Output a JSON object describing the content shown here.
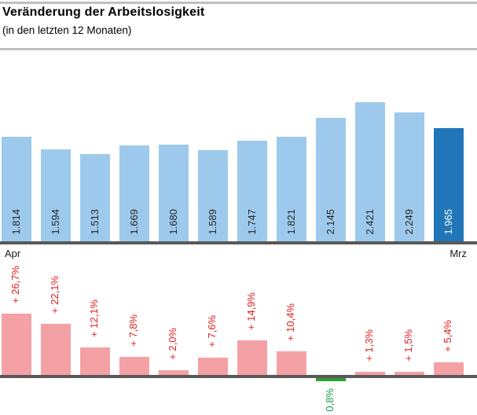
{
  "header": {
    "title": "Veränderung der Arbeitslosigkeit",
    "subtitle": "(in den letzten 12 Monaten)"
  },
  "axis": {
    "left_label": "Apr",
    "right_label": "Mrz"
  },
  "colors": {
    "bar_light_blue": "#9DCAEC",
    "bar_dark_blue": "#2076B8",
    "bar_pink": "#F4A1A6",
    "bar_green": "#2E9E30",
    "label_dark": "#262626",
    "label_white": "#FFFFFF",
    "label_red": "#E02020",
    "label_green": "#149E49",
    "axis_gray": "#595959",
    "rule_gray": "#BFBFBF"
  },
  "chart_data": [
    {
      "type": "bar",
      "name": "unemployment-absolute",
      "categories": [
        "Apr",
        "",
        "",
        "",
        "",
        "",
        "",
        "",
        "",
        "",
        "",
        "Mrz"
      ],
      "values": [
        1814,
        1594,
        1513,
        1669,
        1680,
        1589,
        1747,
        1821,
        2145,
        2421,
        2249,
        1965
      ],
      "labels": [
        "1.814",
        "1.594",
        "1.513",
        "1.669",
        "1.680",
        "1.589",
        "1.747",
        "1.821",
        "2.145",
        "2.421",
        "2.249",
        "1.965"
      ],
      "highlight_index": 11,
      "bar_color": "#9DCAEC",
      "highlight_color": "#2076B8",
      "label_position": "inside-base",
      "legend": "off",
      "grid": "off"
    },
    {
      "type": "bar",
      "name": "unemployment-change-percent",
      "categories": [
        "Apr",
        "",
        "",
        "",
        "",
        "",
        "",
        "",
        "",
        "",
        "",
        "Mrz"
      ],
      "values": [
        26.7,
        22.1,
        12.1,
        7.8,
        2.0,
        7.6,
        14.9,
        10.4,
        -0.8,
        1.3,
        1.5,
        5.4
      ],
      "labels": [
        "+ 26,7%",
        "+ 22,1%",
        "+ 12,1%",
        "+ 7,8%",
        "+ 2,0%",
        "+ 7,6%",
        "+ 14,9%",
        "+ 10,4%",
        "0,8%",
        "+ 1,3%",
        "+ 1,5%",
        "+ 5,4%"
      ],
      "positive_color": "#F4A1A6",
      "negative_color": "#2E9E30",
      "positive_label_color": "#E02020",
      "negative_label_color": "#149E49",
      "label_position": "outside-end",
      "legend": "off",
      "grid": "off"
    }
  ]
}
